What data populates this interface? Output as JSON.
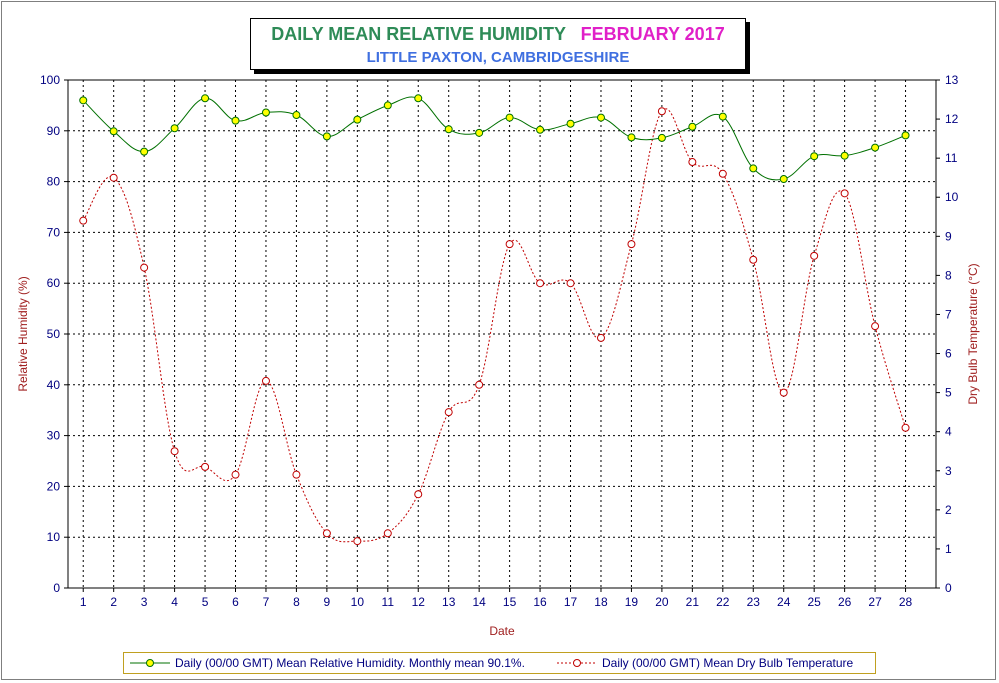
{
  "title": {
    "main": "DAILY MEAN RELATIVE HUMIDITY",
    "month": "FEBRUARY 2017",
    "subtitle": "LITTLE PAXTON, CAMBRIDGESHIRE"
  },
  "colors": {
    "humidity_line": "#007000",
    "humidity_marker": "#ffff00",
    "temperature_line": "#c00000",
    "left_axis_text": "#000080",
    "right_axis_text": "#000080",
    "left_axis_label": "#a02020",
    "right_axis_label": "#a02020"
  },
  "legend": {
    "humidity": "Daily (00/00 GMT) Mean Relative Humidity.  Monthly mean 90.1%.",
    "temperature": "Daily (00/00 GMT) Mean Dry Bulb Temperature"
  },
  "chart_data": {
    "type": "line",
    "title": "DAILY MEAN RELATIVE HUMIDITY   FEBRUARY 2017",
    "subtitle": "LITTLE PAXTON, CAMBRIDGESHIRE",
    "xlabel": "Date",
    "ylabel": "Relative Humidity (%)",
    "y2label": "Dry Bulb Temperature (°C)",
    "ylim": [
      0,
      100
    ],
    "y2lim": [
      0,
      13
    ],
    "yticks": [
      0,
      10,
      20,
      30,
      40,
      50,
      60,
      70,
      80,
      90,
      100
    ],
    "y2ticks": [
      0,
      1,
      2,
      3,
      4,
      5,
      6,
      7,
      8,
      9,
      10,
      11,
      12,
      13
    ],
    "grid": true,
    "legend_position": "bottom",
    "x": [
      1,
      2,
      3,
      4,
      5,
      6,
      7,
      8,
      9,
      10,
      11,
      12,
      13,
      14,
      15,
      16,
      17,
      18,
      19,
      20,
      21,
      22,
      23,
      24,
      25,
      26,
      27,
      28
    ],
    "series": [
      {
        "name": "Daily (00/00 GMT) Mean Relative Humidity.  Monthly mean 90.1%.",
        "axis": "left",
        "style": "solid",
        "values": [
          96.0,
          89.9,
          85.9,
          90.5,
          96.4,
          92.0,
          93.6,
          93.1,
          88.9,
          92.2,
          95.0,
          96.4,
          90.3,
          89.6,
          92.6,
          90.2,
          91.4,
          92.6,
          88.7,
          88.6,
          90.8,
          92.8,
          82.6,
          80.5,
          85.0,
          85.1,
          86.7,
          89.1
        ]
      },
      {
        "name": "Daily (00/00 GMT) Mean Dry Bulb Temperature",
        "axis": "right",
        "style": "dashed",
        "values": [
          9.4,
          10.5,
          8.2,
          3.5,
          3.1,
          2.9,
          5.3,
          2.9,
          1.4,
          1.2,
          1.4,
          2.4,
          4.5,
          5.2,
          8.8,
          7.8,
          7.8,
          6.4,
          8.8,
          12.2,
          10.9,
          10.6,
          8.4,
          5.0,
          8.5,
          10.1,
          6.7,
          4.1
        ]
      }
    ]
  }
}
